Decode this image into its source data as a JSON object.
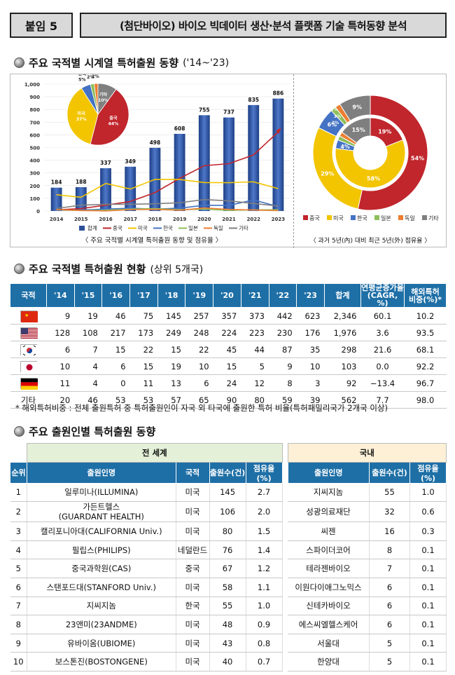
{
  "header": {
    "tag": "붙임 5",
    "title": "(첨단바이오) 바이오 빅데이터 생산·분석 플랫폼 기술 특허동향 분석"
  },
  "section1": {
    "title": "주요 국적별 시계열 특허출원 동향",
    "subtitle": "('14~'23)"
  },
  "chart_data": [
    {
      "type": "bar",
      "title": "주요 국적별 시계열 특허출원 동향 및 점유율",
      "categories": [
        "2014",
        "2015",
        "2016",
        "2017",
        "2018",
        "2019",
        "2020",
        "2021",
        "2022",
        "2023"
      ],
      "ylim": [
        0,
        1000
      ],
      "yticks": [
        "0",
        "100",
        "200",
        "300",
        "400",
        "500",
        "600",
        "700",
        "800",
        "900",
        "1,000"
      ],
      "series": [
        {
          "name": "합계",
          "type": "bar",
          "color": "#2b4f9a",
          "values": [
            184,
            188,
            337,
            349,
            498,
            608,
            755,
            737,
            835,
            886
          ]
        },
        {
          "name": "중국",
          "type": "line",
          "color": "#c0262c",
          "values": [
            9,
            19,
            46,
            75,
            145,
            257,
            357,
            373,
            442,
            623
          ]
        },
        {
          "name": "미국",
          "type": "line",
          "color": "#f2c500",
          "values": [
            128,
            108,
            217,
            173,
            249,
            248,
            224,
            223,
            230,
            176
          ]
        },
        {
          "name": "한국",
          "type": "line",
          "color": "#4472c4",
          "values": [
            6,
            7,
            15,
            22,
            15,
            22,
            45,
            44,
            87,
            35
          ]
        },
        {
          "name": "일본",
          "type": "line",
          "color": "#8fbf5a",
          "values": [
            10,
            4,
            6,
            15,
            19,
            10,
            15,
            5,
            9,
            10
          ]
        },
        {
          "name": "독일",
          "type": "line",
          "color": "#ed7d31",
          "values": [
            11,
            4,
            0,
            11,
            13,
            6,
            24,
            12,
            8,
            3
          ]
        },
        {
          "name": "기타",
          "type": "line",
          "color": "#7f7f7f",
          "values": [
            20,
            46,
            53,
            53,
            57,
            65,
            90,
            80,
            59,
            39
          ]
        }
      ],
      "pie": {
        "labels": [
          "중국",
          "미국",
          "한국",
          "일본",
          "독일",
          "기타"
        ],
        "values": [
          44,
          37,
          5,
          2,
          2,
          10
        ],
        "display": [
          "중국\n44%",
          "미국\n37%",
          "한국\n5%",
          "일본\n2%",
          "독일\n2%",
          "기타\n10%"
        ],
        "colors": [
          "#c0262c",
          "#f2c500",
          "#4472c4",
          "#8fbf5a",
          "#ed7d31",
          "#7f7f7f"
        ]
      }
    },
    {
      "type": "pie",
      "title": "과거 5년(內) 대비 최근 5년(外) 점유율",
      "variant": "doughnut",
      "labels": [
        "중국",
        "미국",
        "한국",
        "일본",
        "독일",
        "기타"
      ],
      "colors": [
        "#c0262c",
        "#f2c500",
        "#4472c4",
        "#8fbf5a",
        "#ed7d31",
        "#7f7f7f"
      ],
      "outer": [
        54,
        29,
        6,
        1.5,
        1.5,
        9
      ],
      "inner": [
        19,
        58,
        4,
        2,
        2,
        15
      ],
      "outer_labels": [
        "54%",
        "29%",
        "6%",
        "",
        "",
        "9%"
      ],
      "inner_labels": [
        "19%",
        "58%",
        "4%",
        "",
        "",
        "15%"
      ],
      "small_labels": [
        "1%",
        "2%",
        "3%",
        "2%"
      ]
    }
  ],
  "chart_captions": {
    "left": "〈 주요 국적별 시계열 특허출원 동향 및 점유율 〉",
    "right": "〈 과거 5년(內) 대비 최근 5년(外) 점유율 〉"
  },
  "section2": {
    "title": "주요 국적별 특허출원 현황",
    "subtitle": "(상위 5개국)"
  },
  "table1": {
    "headers": [
      "국적",
      "'14",
      "'15",
      "'16",
      "'17",
      "'18",
      "'19",
      "'20",
      "'21",
      "'22",
      "'23",
      "합계",
      "연평균증가율\n(CAGR, %)",
      "해외특허\n비중(%)*"
    ],
    "rows": [
      {
        "flag": "cn",
        "values": [
          "9",
          "19",
          "46",
          "75",
          "145",
          "257",
          "357",
          "373",
          "442",
          "623",
          "2,346",
          "60.1",
          "10.2"
        ]
      },
      {
        "flag": "us",
        "values": [
          "128",
          "108",
          "217",
          "173",
          "249",
          "248",
          "224",
          "223",
          "230",
          "176",
          "1,976",
          "3.6",
          "93.5"
        ]
      },
      {
        "flag": "kr",
        "values": [
          "6",
          "7",
          "15",
          "22",
          "15",
          "22",
          "45",
          "44",
          "87",
          "35",
          "298",
          "21.6",
          "68.1"
        ]
      },
      {
        "flag": "jp",
        "values": [
          "10",
          "4",
          "6",
          "15",
          "19",
          "10",
          "15",
          "5",
          "9",
          "10",
          "103",
          "0.0",
          "92.2"
        ]
      },
      {
        "flag": "de",
        "values": [
          "11",
          "4",
          "0",
          "11",
          "13",
          "6",
          "24",
          "12",
          "8",
          "3",
          "92",
          "−13.4",
          "96.7"
        ]
      }
    ],
    "other": {
      "label": "기타",
      "values": [
        "20",
        "46",
        "53",
        "53",
        "57",
        "65",
        "90",
        "80",
        "59",
        "39",
        "562",
        "7.7",
        "98.0"
      ]
    },
    "note": "* 해외특허비중 : 전체 출원특허 중 특허출원인이 자국 외 타국에 출원한 특허 비율(특허패밀리국가 2개국 이상)"
  },
  "section3": {
    "title": "주요 출원인별 특허출원 동향"
  },
  "table2": {
    "group_world": "전 세계",
    "group_domestic": "국내",
    "headers": [
      "순위",
      "출원인명",
      "국적",
      "출원수(건)",
      "점유율(%)",
      "출원인명",
      "출원수(건)",
      "점유율(%)"
    ],
    "rows": [
      [
        "1",
        "일루미나(ILLUMINA)",
        "미국",
        "145",
        "2.7",
        "지씨지놈",
        "55",
        "1.0"
      ],
      [
        "2",
        "가든트헬스\n(GUARDANT HEALTH)",
        "미국",
        "106",
        "2.0",
        "성광의료재단",
        "32",
        "0.6"
      ],
      [
        "3",
        "캘리포니아대(CALIFORNIA Univ.)",
        "미국",
        "80",
        "1.5",
        "씨젠",
        "16",
        "0.3"
      ],
      [
        "4",
        "필립스(PHILIPS)",
        "네덜란드",
        "76",
        "1.4",
        "스파이더코어",
        "8",
        "0.1"
      ],
      [
        "5",
        "중국과학원(CAS)",
        "중국",
        "67",
        "1.2",
        "테라젠바이오",
        "7",
        "0.1"
      ],
      [
        "6",
        "스탠포드대(STANFORD Univ.)",
        "미국",
        "58",
        "1.1",
        "이원다이애그노믹스",
        "6",
        "0.1"
      ],
      [
        "7",
        "지씨지놈",
        "한국",
        "55",
        "1.0",
        "신테카바이오",
        "6",
        "0.1"
      ],
      [
        "8",
        "23앤미(23ANDME)",
        "미국",
        "48",
        "0.9",
        "에스씨엘헬스케어",
        "6",
        "0.1"
      ],
      [
        "9",
        "유바이옴(UBIOME)",
        "미국",
        "43",
        "0.8",
        "서울대",
        "5",
        "0.1"
      ],
      [
        "10",
        "보스톤진(BOSTONGENE)",
        "미국",
        "40",
        "0.7",
        "한양대",
        "5",
        "0.1"
      ]
    ]
  }
}
